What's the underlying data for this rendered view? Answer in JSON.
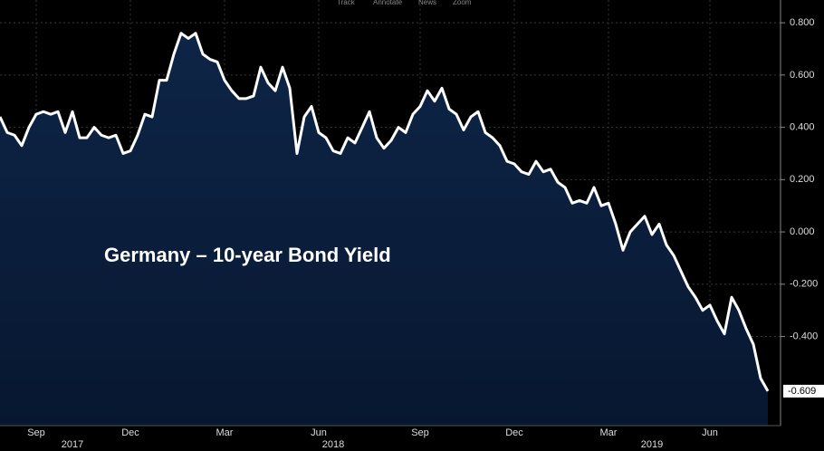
{
  "toolbar": [
    "Track",
    "Annotate",
    "News",
    "Zoom"
  ],
  "chart_data": {
    "type": "area",
    "annotation": "Germany – 10-year Bond Yield",
    "categories": [
      null,
      null,
      null,
      null,
      null,
      "Sep",
      null,
      null,
      null,
      null,
      null,
      null,
      null,
      null,
      null,
      null,
      null,
      null,
      "Dec",
      null,
      null,
      null,
      null,
      null,
      null,
      null,
      null,
      null,
      null,
      null,
      null,
      "Mar",
      null,
      null,
      null,
      null,
      null,
      null,
      null,
      null,
      null,
      null,
      null,
      null,
      "Jun",
      null,
      null,
      null,
      null,
      null,
      null,
      null,
      null,
      null,
      null,
      null,
      null,
      null,
      "Sep",
      null,
      null,
      null,
      null,
      null,
      null,
      null,
      null,
      null,
      null,
      null,
      null,
      "Dec",
      null,
      null,
      null,
      null,
      null,
      null,
      null,
      null,
      null,
      null,
      null,
      null,
      "Mar",
      null,
      null,
      null,
      null,
      null,
      null,
      null,
      null,
      null,
      null,
      null,
      null,
      null,
      "Jun",
      null,
      null,
      null,
      null,
      null,
      null,
      null,
      null
    ],
    "year_categories": [
      null,
      null,
      null,
      null,
      null,
      null,
      null,
      null,
      null,
      null,
      "2017",
      null,
      null,
      null,
      null,
      null,
      null,
      null,
      null,
      null,
      null,
      null,
      null,
      null,
      null,
      null,
      null,
      null,
      null,
      null,
      null,
      null,
      null,
      null,
      null,
      null,
      null,
      null,
      null,
      null,
      null,
      null,
      null,
      null,
      null,
      null,
      "2018",
      null,
      null,
      null,
      null,
      null,
      null,
      null,
      null,
      null,
      null,
      null,
      null,
      null,
      null,
      null,
      null,
      null,
      null,
      null,
      null,
      null,
      null,
      null,
      null,
      null,
      null,
      null,
      null,
      null,
      null,
      null,
      null,
      null,
      null,
      null,
      null,
      null,
      null,
      null,
      null,
      null,
      null,
      null,
      "2019",
      null,
      null,
      null,
      null,
      null,
      null,
      null,
      null,
      null,
      null,
      null,
      null,
      null,
      null,
      null,
      null
    ],
    "series": [
      {
        "name": "Germany – 10-year Bond Yield",
        "color": "#ffffff",
        "fill": "#0b1f3f",
        "values": [
          0.44,
          0.38,
          0.37,
          0.33,
          0.4,
          0.45,
          0.46,
          0.45,
          0.46,
          0.38,
          0.46,
          0.36,
          0.36,
          0.4,
          0.37,
          0.36,
          0.37,
          0.3,
          0.31,
          0.37,
          0.45,
          0.44,
          0.58,
          0.58,
          0.68,
          0.76,
          0.74,
          0.76,
          0.68,
          0.66,
          0.65,
          0.58,
          0.54,
          0.51,
          0.51,
          0.52,
          0.63,
          0.57,
          0.54,
          0.63,
          0.55,
          0.3,
          0.44,
          0.48,
          0.38,
          0.36,
          0.31,
          0.3,
          0.36,
          0.34,
          0.4,
          0.46,
          0.36,
          0.32,
          0.35,
          0.4,
          0.38,
          0.45,
          0.48,
          0.54,
          0.5,
          0.55,
          0.47,
          0.45,
          0.39,
          0.44,
          0.46,
          0.38,
          0.36,
          0.33,
          0.27,
          0.26,
          0.23,
          0.22,
          0.27,
          0.23,
          0.24,
          0.19,
          0.17,
          0.11,
          0.12,
          0.11,
          0.17,
          0.1,
          0.11,
          0.03,
          -0.07,
          0.0,
          0.03,
          0.06,
          -0.01,
          0.03,
          -0.05,
          -0.09,
          -0.15,
          -0.21,
          -0.25,
          -0.3,
          -0.28,
          -0.34,
          -0.39,
          -0.25,
          -0.3,
          -0.37,
          -0.43,
          -0.56,
          -0.609
        ]
      }
    ],
    "ylim": [
      -0.741,
      0.887
    ],
    "yticks": [
      {
        "value": 0.8,
        "label": "0.800"
      },
      {
        "value": 0.6,
        "label": "0.600"
      },
      {
        "value": 0.4,
        "label": "0.400"
      },
      {
        "value": 0.2,
        "label": "0.200"
      },
      {
        "value": 0,
        "label": "0.000"
      },
      {
        "value": -0.2,
        "label": "-0.200"
      },
      {
        "value": -0.4,
        "label": "-0.400"
      }
    ],
    "grid": true
  }
}
